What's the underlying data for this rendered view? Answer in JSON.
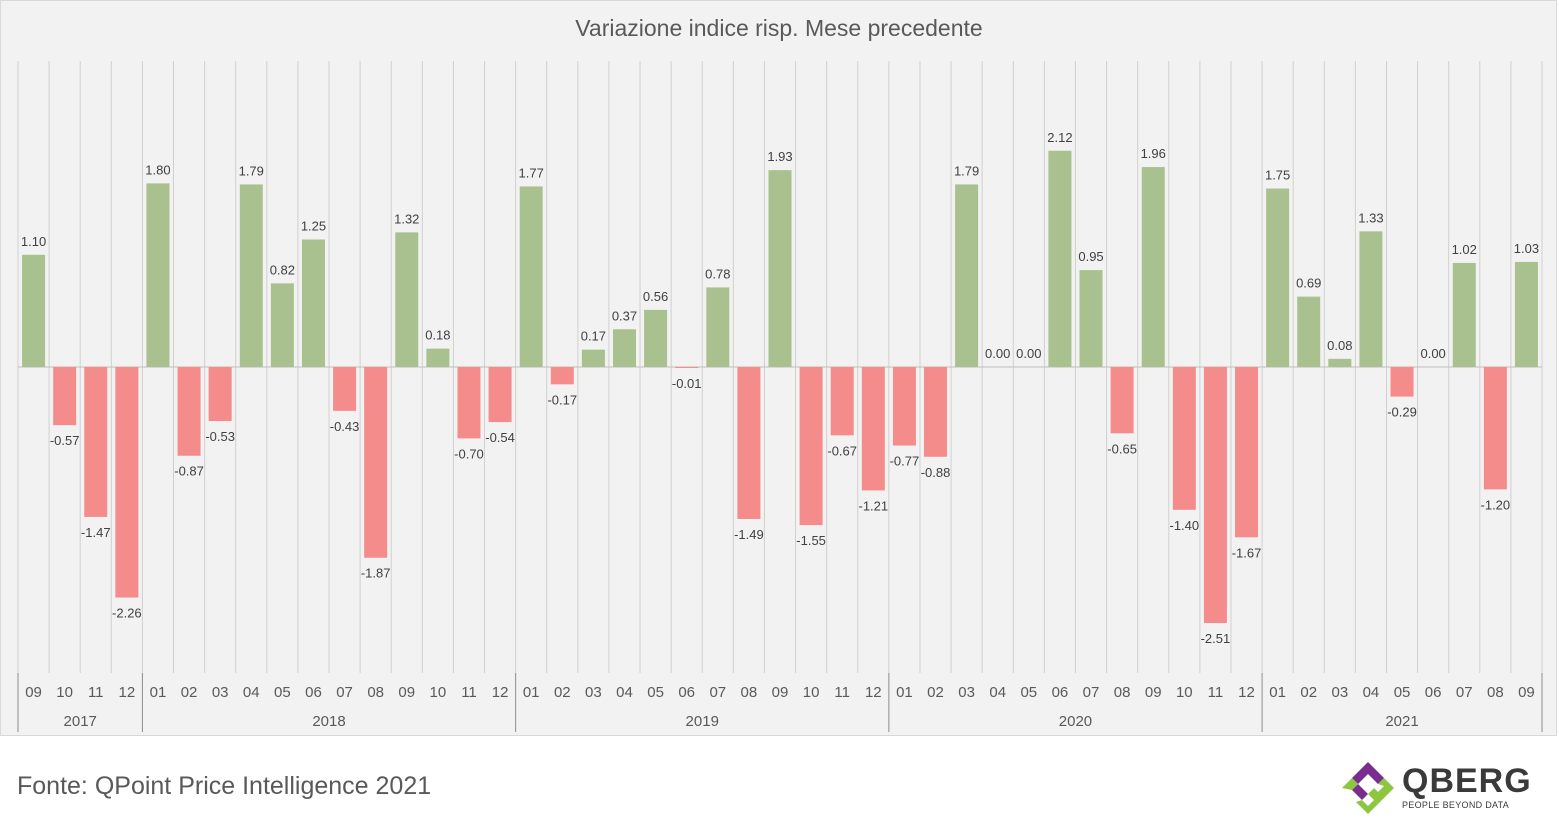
{
  "chart_data": {
    "type": "bar",
    "title": "Variazione indice risp. Mese precedente",
    "xlabel": "",
    "ylabel": "",
    "grid": true,
    "positive_color": "#a9c18e",
    "negative_color": "#f58c8c",
    "months": [
      "09",
      "10",
      "11",
      "12",
      "01",
      "02",
      "03",
      "04",
      "05",
      "06",
      "07",
      "08",
      "09",
      "10",
      "11",
      "12",
      "01",
      "02",
      "03",
      "04",
      "05",
      "06",
      "07",
      "08",
      "09",
      "10",
      "11",
      "12",
      "01",
      "02",
      "03",
      "04",
      "05",
      "06",
      "07",
      "08",
      "09",
      "10",
      "11",
      "12",
      "01",
      "02",
      "03",
      "04",
      "05",
      "06",
      "07",
      "08",
      "09"
    ],
    "years": [
      {
        "label": "2017",
        "count": 4
      },
      {
        "label": "2018",
        "count": 12
      },
      {
        "label": "2019",
        "count": 12
      },
      {
        "label": "2020",
        "count": 12
      },
      {
        "label": "2021",
        "count": 9
      }
    ],
    "values": [
      1.1,
      -0.57,
      -1.47,
      -2.26,
      1.8,
      -0.87,
      -0.53,
      1.79,
      0.82,
      1.25,
      -0.43,
      -1.87,
      1.32,
      0.18,
      -0.7,
      -0.54,
      1.77,
      -0.17,
      0.17,
      0.37,
      0.56,
      -0.01,
      0.78,
      -1.49,
      1.93,
      -1.55,
      -0.67,
      -1.21,
      -0.77,
      -0.88,
      1.79,
      0.0,
      0.0,
      2.12,
      0.95,
      -0.65,
      1.96,
      -1.4,
      -2.51,
      -1.67,
      1.75,
      0.69,
      0.08,
      1.33,
      -0.29,
      0.0,
      1.02,
      -1.2,
      1.03
    ],
    "labels": [
      "1.10",
      "-0.57",
      "-1.47",
      "-2.26",
      "1.80",
      "-0.87",
      "-0.53",
      "1.79",
      "0.82",
      "1.25",
      "-0.43",
      "-1.87",
      "1.32",
      "0.18",
      "-0.70",
      "-0.54",
      "1.77",
      "-0.17",
      "0.17",
      "0.37",
      "0.56",
      "-0.01",
      "0.78",
      "-1.49",
      "1.93",
      "-1.55",
      "-0.67",
      "-1.21",
      "-0.77",
      "-0.88",
      "1.79",
      "0.00",
      "0.00",
      "2.12",
      "0.95",
      "-0.65",
      "1.96",
      "-1.40",
      "-2.51",
      "-1.67",
      "1.75",
      "0.69",
      "0.08",
      "1.33",
      "-0.29",
      "0.00",
      "1.02",
      "-1.20",
      "1.03"
    ]
  },
  "footer": {
    "source": "Fonte: QPoint Price Intelligence 2021"
  },
  "logo": {
    "name": "QBERG",
    "tagline": "PEOPLE BEYOND DATA",
    "colors": [
      "#7b2d8e",
      "#8dc63f"
    ]
  }
}
